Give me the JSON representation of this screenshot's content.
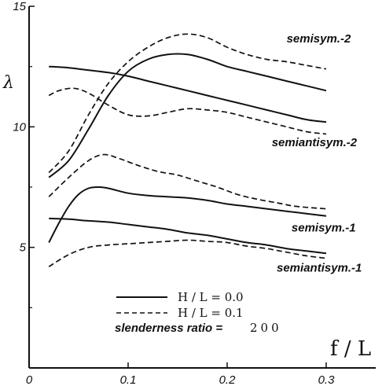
{
  "chart_data": {
    "type": "line",
    "xlabel": "f / L",
    "ylabel": "λ",
    "xlim": [
      0,
      0.35
    ],
    "ylim": [
      0,
      15
    ],
    "x_ticks": [
      "0",
      "0.1",
      "0.2",
      "0.3"
    ],
    "y_ticks": [
      "5",
      "10",
      "15"
    ],
    "legend": {
      "solid_label": "H / L = 0.0",
      "dashed_label": "H / L = 0.1",
      "note_prefix": "slenderness ratio =",
      "note_value": "200"
    },
    "mode_labels": [
      {
        "text": "semisym.-2",
        "fx": 0.26,
        "fy": 13.5
      },
      {
        "text": "semiantisym.-2",
        "fx": 0.245,
        "fy": 9.2
      },
      {
        "text": "semisym.-1",
        "fx": 0.265,
        "fy": 5.65
      },
      {
        "text": "semiantisym.-1",
        "fx": 0.25,
        "fy": 4.0
      }
    ],
    "series": [
      {
        "style": "solid",
        "points": [
          [
            0.02,
            7.9
          ],
          [
            0.04,
            8.6
          ],
          [
            0.06,
            9.9
          ],
          [
            0.08,
            11.3
          ],
          [
            0.1,
            12.3
          ],
          [
            0.12,
            12.8
          ],
          [
            0.14,
            13.0
          ],
          [
            0.16,
            13.0
          ],
          [
            0.18,
            12.8
          ],
          [
            0.2,
            12.5
          ],
          [
            0.22,
            12.3
          ],
          [
            0.24,
            12.1
          ],
          [
            0.26,
            11.9
          ],
          [
            0.28,
            11.7
          ],
          [
            0.3,
            11.5
          ]
        ]
      },
      {
        "style": "solid",
        "points": [
          [
            0.02,
            12.5
          ],
          [
            0.04,
            12.45
          ],
          [
            0.06,
            12.35
          ],
          [
            0.08,
            12.25
          ],
          [
            0.1,
            12.1
          ],
          [
            0.12,
            11.9
          ],
          [
            0.14,
            11.7
          ],
          [
            0.16,
            11.5
          ],
          [
            0.18,
            11.3
          ],
          [
            0.2,
            11.1
          ],
          [
            0.22,
            10.9
          ],
          [
            0.24,
            10.7
          ],
          [
            0.26,
            10.5
          ],
          [
            0.28,
            10.3
          ],
          [
            0.3,
            10.2
          ]
        ]
      },
      {
        "style": "solid",
        "points": [
          [
            0.02,
            5.2
          ],
          [
            0.03,
            6.0
          ],
          [
            0.04,
            6.7
          ],
          [
            0.05,
            7.2
          ],
          [
            0.06,
            7.45
          ],
          [
            0.07,
            7.5
          ],
          [
            0.08,
            7.45
          ],
          [
            0.1,
            7.25
          ],
          [
            0.12,
            7.15
          ],
          [
            0.14,
            7.1
          ],
          [
            0.16,
            7.05
          ],
          [
            0.18,
            6.95
          ],
          [
            0.2,
            6.8
          ],
          [
            0.22,
            6.7
          ],
          [
            0.24,
            6.6
          ],
          [
            0.26,
            6.5
          ],
          [
            0.28,
            6.4
          ],
          [
            0.3,
            6.3
          ]
        ]
      },
      {
        "style": "solid",
        "points": [
          [
            0.02,
            6.2
          ],
          [
            0.04,
            6.17
          ],
          [
            0.06,
            6.1
          ],
          [
            0.08,
            6.05
          ],
          [
            0.1,
            5.95
          ],
          [
            0.12,
            5.85
          ],
          [
            0.14,
            5.75
          ],
          [
            0.16,
            5.6
          ],
          [
            0.18,
            5.5
          ],
          [
            0.2,
            5.35
          ],
          [
            0.22,
            5.2
          ],
          [
            0.24,
            5.1
          ],
          [
            0.26,
            4.95
          ],
          [
            0.28,
            4.85
          ],
          [
            0.3,
            4.75
          ]
        ]
      },
      {
        "style": "dashed",
        "points": [
          [
            0.02,
            8.1
          ],
          [
            0.04,
            9.0
          ],
          [
            0.06,
            10.5
          ],
          [
            0.08,
            11.8
          ],
          [
            0.1,
            12.7
          ],
          [
            0.12,
            13.3
          ],
          [
            0.14,
            13.7
          ],
          [
            0.16,
            13.85
          ],
          [
            0.18,
            13.7
          ],
          [
            0.2,
            13.3
          ],
          [
            0.22,
            13.0
          ],
          [
            0.24,
            12.8
          ],
          [
            0.26,
            12.7
          ],
          [
            0.28,
            12.55
          ],
          [
            0.3,
            12.4
          ]
        ]
      },
      {
        "style": "dashed",
        "points": [
          [
            0.02,
            11.3
          ],
          [
            0.03,
            11.5
          ],
          [
            0.045,
            11.6
          ],
          [
            0.06,
            11.4
          ],
          [
            0.08,
            10.9
          ],
          [
            0.1,
            10.5
          ],
          [
            0.12,
            10.45
          ],
          [
            0.14,
            10.6
          ],
          [
            0.16,
            10.75
          ],
          [
            0.18,
            10.7
          ],
          [
            0.2,
            10.6
          ],
          [
            0.22,
            10.4
          ],
          [
            0.24,
            10.2
          ],
          [
            0.26,
            10.0
          ],
          [
            0.28,
            9.8
          ],
          [
            0.3,
            9.7
          ]
        ]
      },
      {
        "style": "dashed",
        "points": [
          [
            0.02,
            7.1
          ],
          [
            0.04,
            7.9
          ],
          [
            0.06,
            8.6
          ],
          [
            0.075,
            8.85
          ],
          [
            0.09,
            8.7
          ],
          [
            0.11,
            8.4
          ],
          [
            0.13,
            8.15
          ],
          [
            0.15,
            8.0
          ],
          [
            0.17,
            7.75
          ],
          [
            0.19,
            7.5
          ],
          [
            0.21,
            7.2
          ],
          [
            0.23,
            7.0
          ],
          [
            0.25,
            6.85
          ],
          [
            0.27,
            6.7
          ],
          [
            0.3,
            6.6
          ]
        ]
      },
      {
        "style": "dashed",
        "points": [
          [
            0.02,
            4.2
          ],
          [
            0.04,
            4.7
          ],
          [
            0.06,
            5.0
          ],
          [
            0.08,
            5.1
          ],
          [
            0.1,
            5.15
          ],
          [
            0.12,
            5.2
          ],
          [
            0.14,
            5.25
          ],
          [
            0.16,
            5.3
          ],
          [
            0.18,
            5.25
          ],
          [
            0.2,
            5.2
          ],
          [
            0.22,
            5.05
          ],
          [
            0.24,
            4.95
          ],
          [
            0.26,
            4.8
          ],
          [
            0.28,
            4.65
          ],
          [
            0.3,
            4.55
          ]
        ]
      }
    ]
  }
}
